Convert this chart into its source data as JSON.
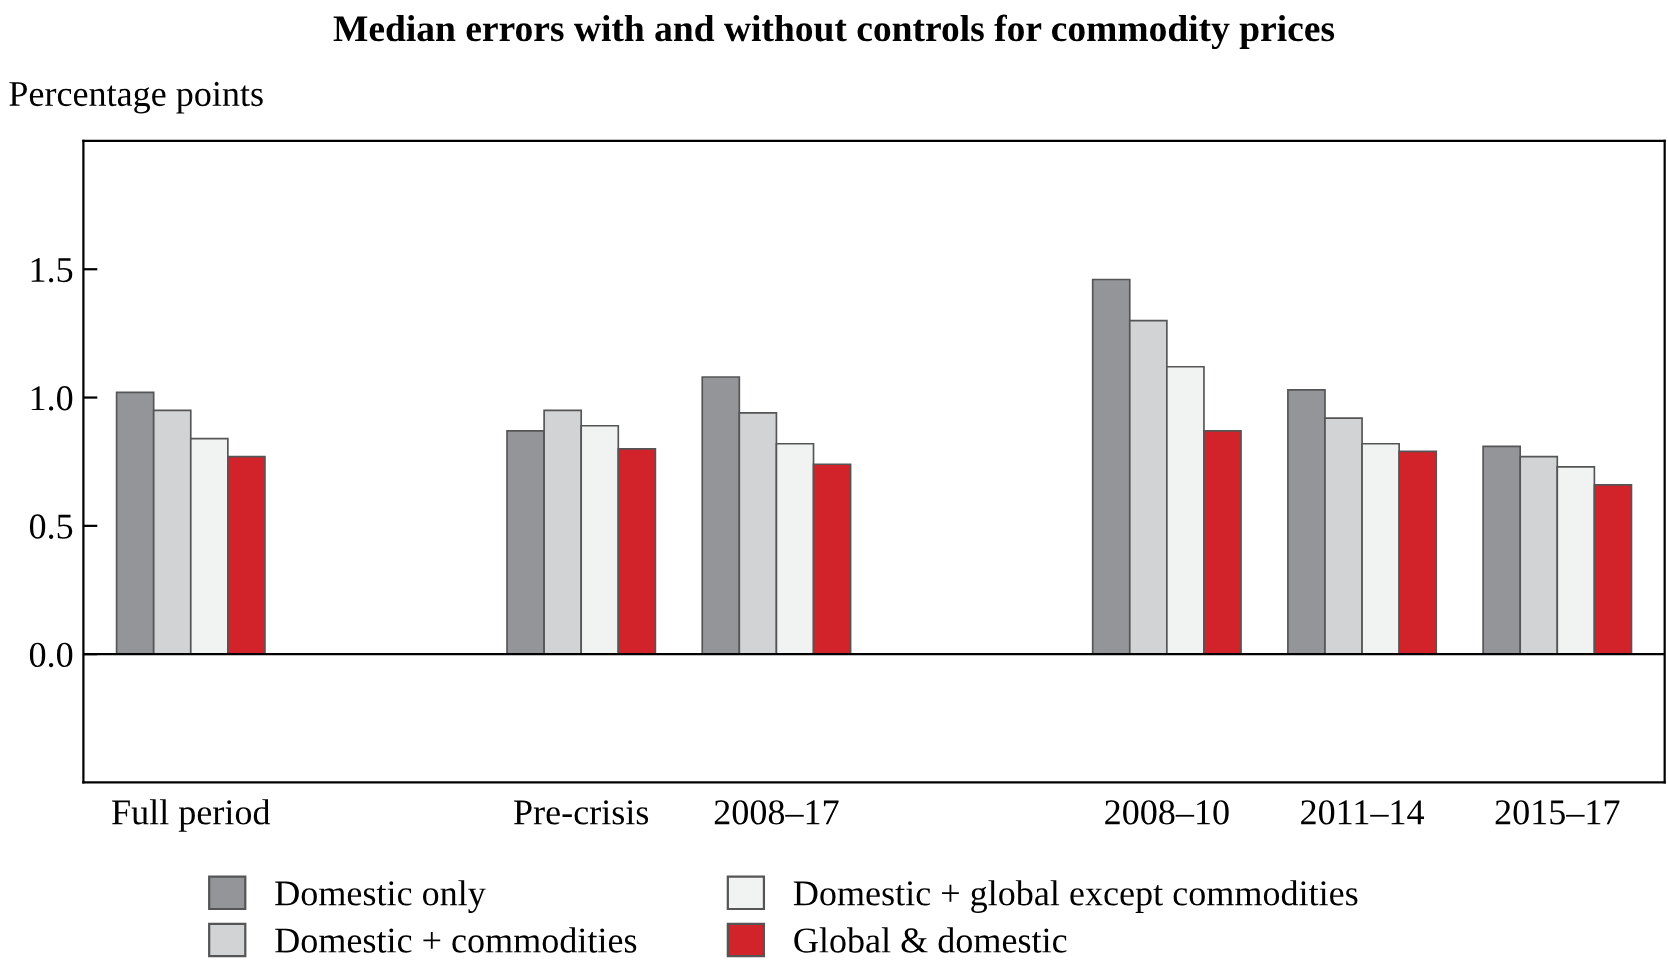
{
  "chart_data": {
    "type": "bar",
    "title": "Median errors with and without controls for commodity prices",
    "ylabel": "Percentage points",
    "categories": [
      "Full period",
      null,
      "Pre-crisis",
      "2008–17",
      null,
      "2008–10",
      "2011–14",
      "2015–17"
    ],
    "series": [
      {
        "name": "Domestic only",
        "color": "#939598",
        "values": [
          1.02,
          null,
          0.87,
          1.08,
          null,
          1.46,
          1.03,
          0.81
        ]
      },
      {
        "name": "Domestic + commodities",
        "color": "#d1d3d4",
        "values": [
          0.95,
          null,
          0.95,
          0.94,
          null,
          1.3,
          0.92,
          0.77
        ]
      },
      {
        "name": "Domestic + global except commodities",
        "color": "#f1f2f2",
        "values": [
          0.84,
          null,
          0.89,
          0.82,
          null,
          1.12,
          0.82,
          0.73
        ]
      },
      {
        "name": "Global & domestic",
        "color": "#d2232a",
        "values": [
          0.77,
          null,
          0.8,
          0.74,
          null,
          0.87,
          0.79,
          0.66
        ]
      }
    ],
    "ylim": [
      -0.5,
      2.0
    ],
    "yticks": [
      {
        "value": 0,
        "label": "0.0"
      },
      {
        "value": 0.5,
        "label": "0.5"
      },
      {
        "value": 1.0,
        "label": "1.0"
      },
      {
        "value": 1.5,
        "label": "1.5"
      }
    ],
    "ref_lines": [
      {
        "axis": "y",
        "value": 0,
        "color": "#000000"
      }
    ],
    "grid": false,
    "legend": "bottom"
  }
}
